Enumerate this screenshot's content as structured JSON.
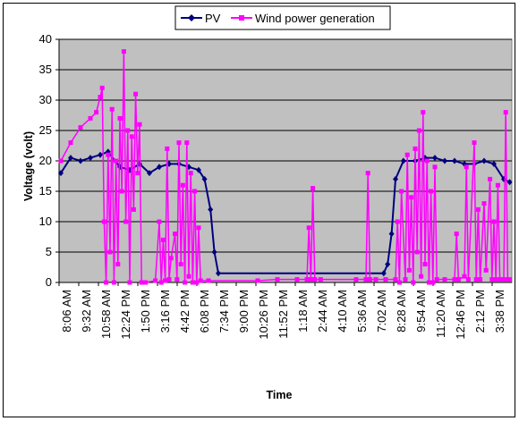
{
  "chart_data": {
    "type": "line",
    "xlabel": "Time",
    "ylabel": "Voltage (volt)",
    "ylim": [
      0,
      40
    ],
    "yticks": [
      0,
      5,
      10,
      15,
      20,
      25,
      30,
      35,
      40
    ],
    "grid": true,
    "legend_position": "top-center",
    "plot_background": "#c0c0c0",
    "x_tick_labels": [
      "8:06 AM",
      "9:32 AM",
      "10:58 AM",
      "12:24 PM",
      "1:50 PM",
      "3:16 PM",
      "4:42 PM",
      "6:08 PM",
      "7:34 PM",
      "9:00 PM",
      "10:26 PM",
      "11:52 PM",
      "1:18 AM",
      "2:44 AM",
      "4:10 AM",
      "5:36 AM",
      "7:02 AM",
      "8:28 AM",
      "9:54 AM",
      "11:20 AM",
      "12:46 PM",
      "2:12 PM",
      "3:38 PM"
    ],
    "series": [
      {
        "name": "PV",
        "color": "#00007f",
        "marker": "diamond",
        "values": [
          [
            0,
            18
          ],
          [
            0.5,
            20.5
          ],
          [
            1,
            20
          ],
          [
            1.5,
            20.5
          ],
          [
            2,
            21
          ],
          [
            2.4,
            21.5
          ],
          [
            3,
            19
          ],
          [
            3.5,
            18.5
          ],
          [
            4,
            19.5
          ],
          [
            4.5,
            18
          ],
          [
            5,
            19
          ],
          [
            5.5,
            19.5
          ],
          [
            6,
            19.5
          ],
          [
            6.5,
            19
          ],
          [
            7,
            18.5
          ],
          [
            7.3,
            17
          ],
          [
            7.6,
            12
          ],
          [
            7.8,
            5
          ],
          [
            8,
            1.5
          ],
          [
            16.4,
            1.5
          ],
          [
            16.6,
            3
          ],
          [
            16.8,
            8
          ],
          [
            17,
            17
          ],
          [
            17.4,
            20
          ],
          [
            18,
            20
          ],
          [
            18.5,
            20.5
          ],
          [
            19,
            20.5
          ],
          [
            19.5,
            20
          ],
          [
            20,
            20
          ],
          [
            20.5,
            19.5
          ],
          [
            21,
            19.5
          ],
          [
            21.5,
            20
          ],
          [
            22,
            19.5
          ],
          [
            22.5,
            17
          ],
          [
            22.8,
            16.5
          ]
        ]
      },
      {
        "name": "Wind power generation",
        "color": "#ff00ff",
        "marker": "square",
        "values": [
          [
            0,
            20
          ],
          [
            0.5,
            23
          ],
          [
            1,
            25.5
          ],
          [
            1.5,
            27
          ],
          [
            1.8,
            28
          ],
          [
            2,
            30.5
          ],
          [
            2.1,
            32
          ],
          [
            2.2,
            10
          ],
          [
            2.3,
            0
          ],
          [
            2.4,
            21
          ],
          [
            2.5,
            5
          ],
          [
            2.6,
            28.5
          ],
          [
            2.7,
            0
          ],
          [
            2.8,
            20
          ],
          [
            2.9,
            3
          ],
          [
            3,
            27
          ],
          [
            3.1,
            15
          ],
          [
            3.2,
            38
          ],
          [
            3.3,
            10
          ],
          [
            3.4,
            25
          ],
          [
            3.5,
            0
          ],
          [
            3.6,
            24
          ],
          [
            3.7,
            12
          ],
          [
            3.8,
            31
          ],
          [
            3.9,
            18
          ],
          [
            4,
            26
          ],
          [
            4.1,
            0
          ],
          [
            4.3,
            0
          ],
          [
            4.8,
            0.3
          ],
          [
            5,
            10
          ],
          [
            5.1,
            0
          ],
          [
            5.2,
            7
          ],
          [
            5.3,
            0.3
          ],
          [
            5.4,
            22
          ],
          [
            5.5,
            0.5
          ],
          [
            5.6,
            4
          ],
          [
            5.8,
            8
          ],
          [
            5.9,
            0.5
          ],
          [
            6,
            23
          ],
          [
            6.1,
            3
          ],
          [
            6.2,
            16
          ],
          [
            6.3,
            0
          ],
          [
            6.4,
            23
          ],
          [
            6.5,
            1
          ],
          [
            6.6,
            18
          ],
          [
            6.7,
            0
          ],
          [
            6.8,
            15
          ],
          [
            6.9,
            0
          ],
          [
            7,
            9
          ],
          [
            7.1,
            0.3
          ],
          [
            7.5,
            0.3
          ],
          [
            10,
            0.3
          ],
          [
            11,
            0.5
          ],
          [
            12,
            0.5
          ],
          [
            12.5,
            0.5
          ],
          [
            12.6,
            9
          ],
          [
            12.7,
            0.5
          ],
          [
            12.8,
            15.5
          ],
          [
            12.9,
            0.5
          ],
          [
            13.2,
            0.5
          ],
          [
            15,
            0.5
          ],
          [
            15.5,
            0.5
          ],
          [
            15.6,
            18
          ],
          [
            15.7,
            0.5
          ],
          [
            16,
            0.5
          ],
          [
            16.5,
            0.5
          ],
          [
            17,
            0.5
          ],
          [
            17.1,
            10
          ],
          [
            17.2,
            0
          ],
          [
            17.3,
            15
          ],
          [
            17.5,
            0.5
          ],
          [
            17.6,
            21
          ],
          [
            17.7,
            2
          ],
          [
            17.8,
            14
          ],
          [
            17.9,
            0
          ],
          [
            18,
            22
          ],
          [
            18.1,
            5
          ],
          [
            18.2,
            25
          ],
          [
            18.3,
            1
          ],
          [
            18.4,
            28
          ],
          [
            18.5,
            3
          ],
          [
            18.6,
            20
          ],
          [
            18.7,
            0
          ],
          [
            18.8,
            15
          ],
          [
            18.9,
            0
          ],
          [
            19,
            19
          ],
          [
            19.1,
            0.5
          ],
          [
            19.5,
            0.5
          ],
          [
            20,
            0.5
          ],
          [
            20.1,
            8
          ],
          [
            20.2,
            0.5
          ],
          [
            20.5,
            1
          ],
          [
            20.6,
            19
          ],
          [
            20.7,
            0.5
          ],
          [
            21,
            23
          ],
          [
            21.1,
            0.5
          ],
          [
            21.2,
            12
          ],
          [
            21.3,
            0.5
          ],
          [
            21.5,
            13
          ],
          [
            21.6,
            2
          ],
          [
            21.8,
            17
          ],
          [
            21.9,
            0.5
          ],
          [
            22,
            10
          ],
          [
            22.1,
            0.5
          ],
          [
            22.2,
            16
          ],
          [
            22.3,
            0.5
          ],
          [
            22.5,
            0.5
          ],
          [
            22.6,
            28
          ],
          [
            22.7,
            0.5
          ],
          [
            22.8,
            0.5
          ]
        ]
      }
    ]
  }
}
